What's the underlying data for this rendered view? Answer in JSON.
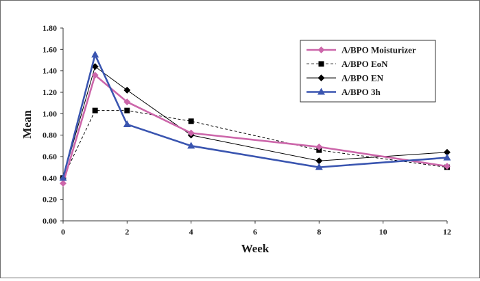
{
  "chart_data": {
    "type": "line",
    "xlabel": "Week",
    "ylabel": "Mean",
    "xlim": [
      0,
      12
    ],
    "ylim": [
      0,
      1.8
    ],
    "x_ticks": [
      "0",
      "2",
      "4",
      "6",
      "8",
      "10",
      "12"
    ],
    "x_tick_values": [
      0,
      2,
      4,
      6,
      8,
      10,
      12
    ],
    "y_ticks": [
      "0.00",
      "0.20",
      "0.40",
      "0.60",
      "0.80",
      "1.00",
      "1.20",
      "1.40",
      "1.60",
      "1.80"
    ],
    "y_tick_values": [
      0,
      0.2,
      0.4,
      0.6,
      0.8,
      1.0,
      1.2,
      1.4,
      1.6,
      1.8
    ],
    "grid": false,
    "legend_position": "top-right",
    "series": [
      {
        "name": "A/BPO Moisturizer",
        "color": "#cc66aa",
        "marker": "diamond",
        "line_style": "solid-thick",
        "x": [
          0,
          1,
          2,
          4,
          8,
          12
        ],
        "y": [
          0.35,
          1.36,
          1.11,
          0.82,
          0.69,
          0.51
        ]
      },
      {
        "name": "A/BPO EoN",
        "color": "#000000",
        "marker": "square",
        "line_style": "dashed",
        "x": [
          0,
          1,
          2,
          4,
          8,
          12
        ],
        "y": [
          0.4,
          1.03,
          1.03,
          0.93,
          0.66,
          0.5
        ]
      },
      {
        "name": "A/BPO EN",
        "color": "#000000",
        "marker": "diamond",
        "line_style": "solid-thin",
        "x": [
          0,
          1,
          2,
          4,
          8,
          12
        ],
        "y": [
          0.4,
          1.44,
          1.22,
          0.8,
          0.56,
          0.64
        ]
      },
      {
        "name": "A/BPO 3h",
        "color": "#3a55b0",
        "marker": "triangle",
        "line_style": "solid-thick",
        "x": [
          0,
          1,
          2,
          4,
          8,
          12
        ],
        "y": [
          0.4,
          1.55,
          0.9,
          0.7,
          0.5,
          0.59
        ]
      }
    ]
  }
}
